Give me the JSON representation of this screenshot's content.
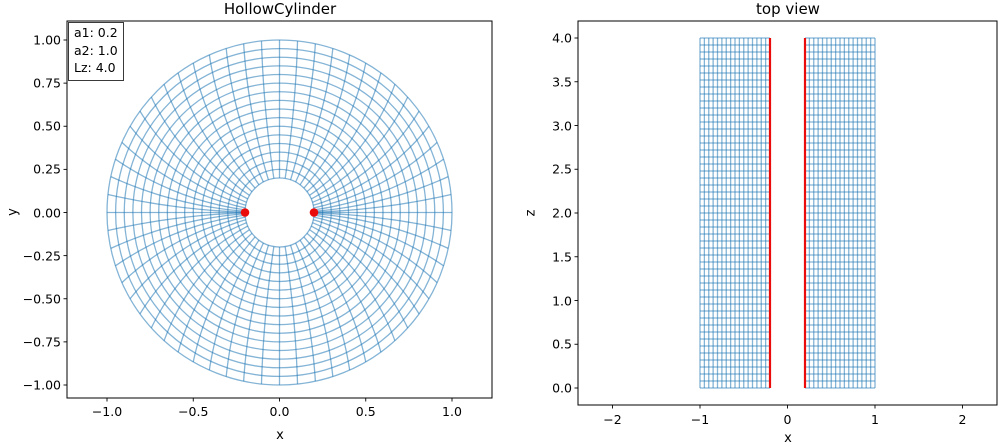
{
  "colors": {
    "mesh": "#1f77b4",
    "mesh_alpha": 0.55,
    "marker_red": "#ea0b0b",
    "axis": "#000000",
    "background": "#ffffff"
  },
  "chart_data": [
    {
      "type": "mesh",
      "title": "HollowCylinder",
      "xlabel": "x",
      "ylabel": "y",
      "annotation": {
        "lines": [
          "a1: 0.2",
          "a2: 1.0",
          "Lz: 4.0"
        ]
      },
      "params": {
        "a1": 0.2,
        "a2": 1.0,
        "Lz": 4.0
      },
      "xticks": {
        "values": [
          -1.0,
          -0.5,
          0.0,
          0.5,
          1.0
        ],
        "labels": [
          "−1.0",
          "−0.5",
          "0.0",
          "0.5",
          "1.0"
        ]
      },
      "yticks": {
        "values": [
          1.0,
          0.75,
          0.5,
          0.25,
          0.0,
          -0.25,
          -0.5,
          -0.75,
          -1.0
        ],
        "labels": [
          "1.00",
          "0.75",
          "0.50",
          "0.25",
          "0.00",
          "−0.25",
          "−0.50",
          "−0.75",
          "−1.00"
        ]
      },
      "mesh": {
        "r_inner": 0.2,
        "r_outer": 1.0,
        "r_step": 0.05,
        "n_rings": 17,
        "n_spokes": 60,
        "spoke_distribution": "clustered at theta=0 and theta=pi at inner radius, uniform at outer radius"
      },
      "markers": [
        {
          "x": -0.2,
          "y": 0.0
        },
        {
          "x": 0.2,
          "y": 0.0
        }
      ]
    },
    {
      "type": "mesh",
      "title": "top view",
      "xlabel": "x",
      "ylabel": "z",
      "xticks": {
        "values": [
          -2,
          -1,
          0,
          1,
          2
        ],
        "labels": [
          "−2",
          "−1",
          "0",
          "1",
          "2"
        ]
      },
      "yticks": {
        "values": [
          0.0,
          0.5,
          1.0,
          1.5,
          2.0,
          2.5,
          3.0,
          3.5,
          4.0
        ],
        "labels": [
          "0.0",
          "0.5",
          "1.0",
          "1.5",
          "2.0",
          "2.5",
          "3.0",
          "3.5",
          "4.0"
        ]
      },
      "bands": [
        {
          "x_min": -1.0,
          "x_max": -0.2
        },
        {
          "x_min": 0.2,
          "x_max": 1.0
        }
      ],
      "grid": {
        "x_step": 0.05,
        "z_min": 0.0,
        "z_max": 4.0,
        "z_step": 0.08
      },
      "red_lines": {
        "x": [
          -0.2,
          0.2
        ]
      }
    }
  ]
}
